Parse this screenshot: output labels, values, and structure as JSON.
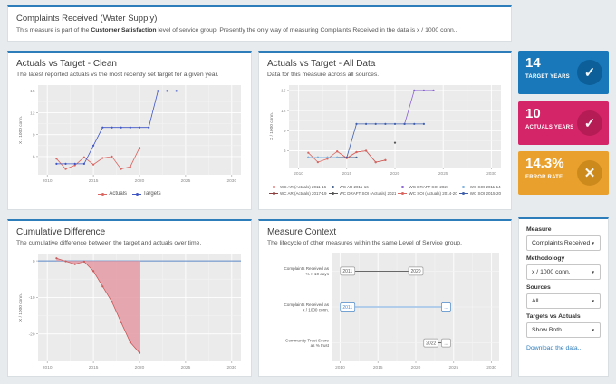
{
  "header": {
    "title": "Complaints Received (Water Supply)",
    "subtitle_prefix": "This measure is part of the ",
    "subtitle_bold": "Customer Satisfaction",
    "subtitle_suffix": " level of service group. Presently the only way of measuring Complaints Received in the data is x / 1000 conn.."
  },
  "panels": {
    "clean": {
      "title": "Actuals vs Target - Clean",
      "subtitle": "The latest reported actuals vs the most recently set target for a given year."
    },
    "alldata": {
      "title": "Actuals vs Target - All Data",
      "subtitle": "Data for this measure across all sources."
    },
    "cumdiff": {
      "title": "Cumulative Difference",
      "subtitle": "The cumulative difference between the target and actuals over time."
    },
    "context": {
      "title": "Measure Context",
      "subtitle": "The lifecycle of other measures within the same Level of Service group."
    }
  },
  "kpis": [
    {
      "value": "14",
      "label": "TARGET YEARS",
      "color": "#1878b9",
      "icon_bg": "#0d5f99",
      "icon": "check"
    },
    {
      "value": "10",
      "label": "ACTUALS YEARS",
      "color": "#d42568",
      "icon_bg": "#b51c55",
      "icon": "check"
    },
    {
      "value": "14.3%",
      "label": "ERROR RATE",
      "color": "#e9a02c",
      "icon_bg": "#cc8a1d",
      "icon": "cross"
    }
  ],
  "filters": [
    {
      "label": "Measure",
      "value": "Complaints Received"
    },
    {
      "label": "Methodology",
      "value": "x / 1000 conn."
    },
    {
      "label": "Sources",
      "value": "All"
    },
    {
      "label": "Targets vs Actuals",
      "value": "Show Both"
    }
  ],
  "download_link": "Download the data...",
  "chart_data": [
    {
      "id": "actuals-vs-target-clean",
      "type": "line",
      "title": "Actuals vs Target - Clean",
      "ylabel": "X / 1000 conn.",
      "xlim": [
        2009,
        2031
      ],
      "ylim": [
        3.5,
        15.8
      ],
      "xticks": [
        2010,
        2015,
        2020,
        2025,
        2030
      ],
      "yticks": [
        6,
        9,
        12,
        15
      ],
      "legend": "bottom",
      "series": [
        {
          "name": "Actuals",
          "color": "#db6560",
          "x": [
            2011,
            2012,
            2013,
            2014,
            2015,
            2016,
            2017,
            2018,
            2019,
            2020
          ],
          "values": [
            5.7,
            4.3,
            4.8,
            5.9,
            4.9,
            5.8,
            6.0,
            4.3,
            4.6,
            7.2
          ]
        },
        {
          "name": "Targets",
          "color": "#3e55c6",
          "x": [
            2011,
            2012,
            2013,
            2014,
            2015,
            2016,
            2017,
            2018,
            2019,
            2020,
            2021,
            2022,
            2023,
            2024
          ],
          "values": [
            5,
            5,
            5,
            5,
            7.5,
            10,
            10,
            10,
            10,
            10,
            10,
            15,
            15,
            15
          ]
        }
      ]
    },
    {
      "id": "actuals-vs-target-all-data",
      "type": "line",
      "title": "Actuals vs Target - All Data",
      "ylabel": "X / 1000 conn.",
      "xlim": [
        2009,
        2031
      ],
      "ylim": [
        3.5,
        15.8
      ],
      "xticks": [
        2010,
        2015,
        2020,
        2025,
        2030
      ],
      "yticks": [
        6,
        9,
        12,
        15
      ],
      "legend": "bottom-grid",
      "series": [
        {
          "name": "WC AR (Actuals) 2011-16",
          "color": "#db6560",
          "x": [
            2011,
            2012,
            2013,
            2014,
            2015,
            2016
          ],
          "values": [
            5.7,
            4.3,
            4.8,
            5.9,
            4.9,
            5.8
          ]
        },
        {
          "name": "WC AR 2011-16",
          "color": "#44618c",
          "x": [
            2011,
            2012,
            2013,
            2014,
            2015,
            2016
          ],
          "values": [
            5,
            5,
            5,
            5,
            5,
            5
          ]
        },
        {
          "name": "WC DRAFT SOI 2021",
          "color": "#8a63d2",
          "x": [
            2021,
            2022,
            2023,
            2024
          ],
          "values": [
            10,
            15,
            15,
            15
          ]
        },
        {
          "name": "WC SOI 2011-14",
          "color": "#7db2e0",
          "x": [
            2011,
            2012,
            2013,
            2014
          ],
          "values": [
            5,
            5,
            5,
            5
          ]
        },
        {
          "name": "WC AR (Actuals) 2017-19",
          "color": "#8e4040",
          "x": [
            2016,
            2017,
            2018,
            2019
          ],
          "values": [
            5.8,
            6.0,
            4.3,
            4.6
          ]
        },
        {
          "name": "WC DRAFT SOI (Actuals) 2021",
          "color": "#555555",
          "x": [
            2020
          ],
          "values": [
            7.2
          ]
        },
        {
          "name": "WC SOI (Actuals) 2014-20",
          "color": "#db6560",
          "x": [
            2014,
            2015,
            2016,
            2017,
            2018,
            2019
          ],
          "values": [
            5.9,
            4.9,
            5.8,
            6.0,
            4.3,
            4.6
          ]
        },
        {
          "name": "WC SOI 2015-20",
          "color": "#3f5fae",
          "x": [
            2015,
            2016,
            2017,
            2018,
            2019,
            2020,
            2021,
            2022,
            2023
          ],
          "values": [
            5,
            10,
            10,
            10,
            10,
            10,
            10,
            10,
            10
          ]
        }
      ]
    },
    {
      "id": "cumulative-difference",
      "type": "area",
      "title": "Cumulative Difference",
      "ylabel": "X / 1000 conn.",
      "xlim": [
        2009,
        2031
      ],
      "ylim": [
        -27.5,
        2
      ],
      "xticks": [
        2010,
        2015,
        2020,
        2025,
        2030
      ],
      "yticks": [
        0,
        -10,
        -20
      ],
      "baseline": 0,
      "baseline_color": "#5b87c5",
      "series": [
        {
          "name": "Cumulative difference",
          "color": "#c85a5a",
          "fill": "#e59aa5",
          "x": [
            2011,
            2012,
            2013,
            2014,
            2015,
            2016,
            2017,
            2018,
            2019,
            2020
          ],
          "values": [
            0.7,
            -0.1,
            -0.9,
            -0.2,
            -2.8,
            -7.0,
            -11.2,
            -16.8,
            -22.3,
            -25.2
          ]
        }
      ]
    },
    {
      "id": "measure-context",
      "type": "timeline",
      "title": "Measure Context",
      "xlim": [
        2009,
        2031
      ],
      "xticks": [
        2010,
        2015,
        2020,
        2025,
        2030
      ],
      "rows": [
        {
          "label": [
            "Complaints Received as",
            "% > 10 days"
          ],
          "start": 2011,
          "end": 2020,
          "start_label": "2011",
          "end_label": "2020",
          "color": "#555555",
          "line_color": "#555555",
          "active": false
        },
        {
          "label": [
            "Complaints Received as",
            "x / 1000 conn."
          ],
          "start": 2011,
          "end": 2024,
          "start_label": "2011",
          "end_label": "...",
          "color": "#4a86c8",
          "line_color": "#a9c9ea",
          "active": true
        },
        {
          "label": [
            "Community Trust Score",
            "as % trust"
          ],
          "start": 2022,
          "end": 2024,
          "start_label": "2022",
          "end_label": "...",
          "color": "#555555",
          "line_color": "#555555",
          "active": false
        }
      ]
    }
  ]
}
